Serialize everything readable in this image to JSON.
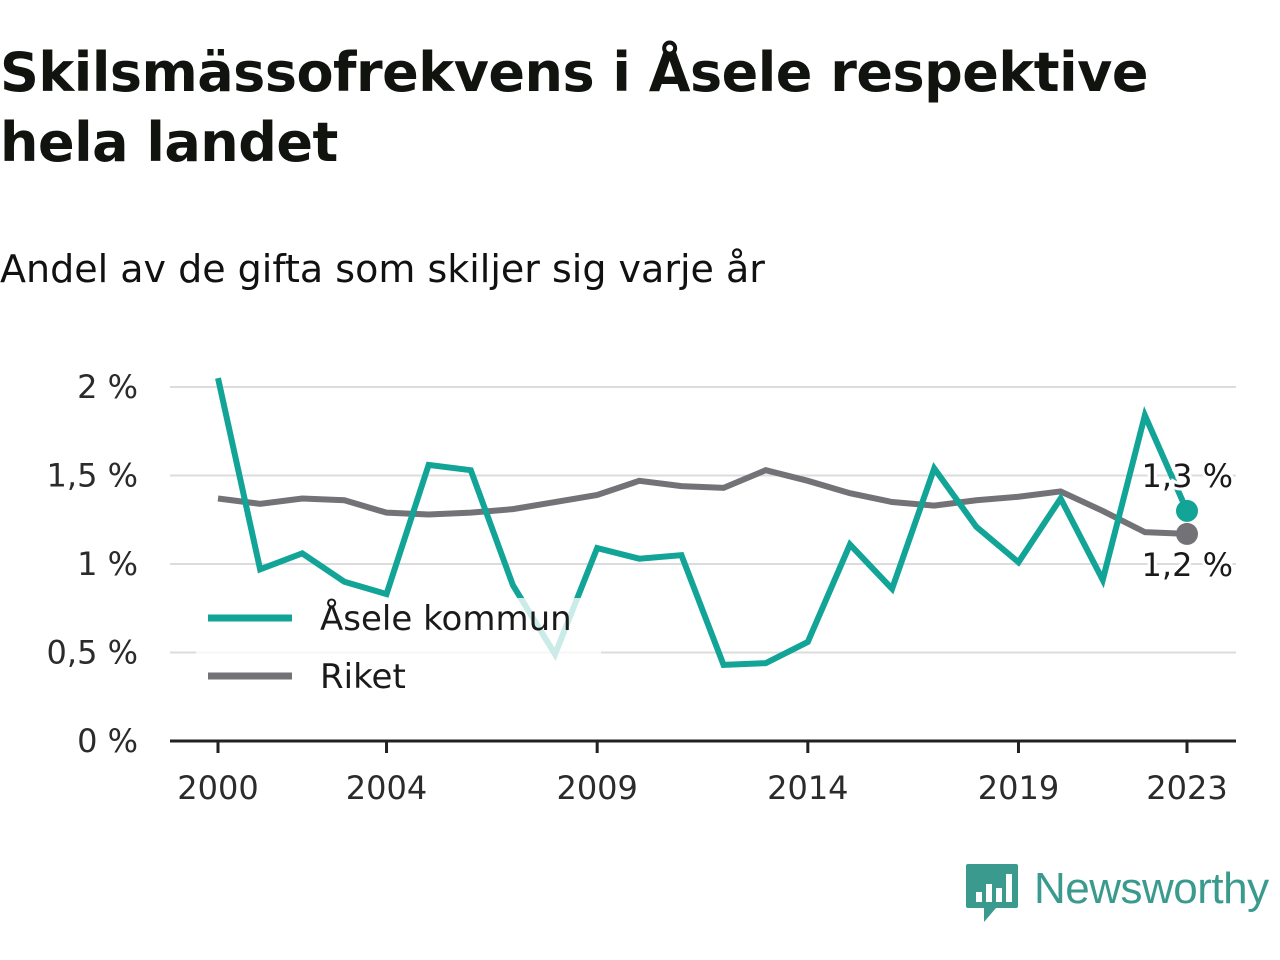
{
  "chart_data": {
    "type": "line",
    "title": "Skilsmässofrekvens i Åsele respektive hela landet",
    "subtitle": "Andel av de gifta som skiljer sig varje år",
    "x": [
      2000,
      2001,
      2002,
      2003,
      2004,
      2005,
      2006,
      2007,
      2008,
      2009,
      2010,
      2011,
      2012,
      2013,
      2014,
      2015,
      2016,
      2017,
      2018,
      2019,
      2020,
      2021,
      2022,
      2023
    ],
    "x_tick_labels": [
      "2000",
      "2004",
      "2009",
      "2014",
      "2019",
      "2023"
    ],
    "x_tick_values": [
      2000,
      2004,
      2009,
      2014,
      2019,
      2023
    ],
    "y_tick_labels": [
      "0 %",
      "0,5 %",
      "1 %",
      "1,5 %",
      "2 %"
    ],
    "y_tick_values": [
      0,
      0.5,
      1,
      1.5,
      2
    ],
    "ylim": [
      0,
      2
    ],
    "grid": "horizontal",
    "legend_position": "lower-left",
    "series": [
      {
        "name": "Åsele kommun",
        "color": "#12a497",
        "values": [
          2.05,
          0.97,
          1.06,
          0.9,
          0.83,
          1.56,
          1.53,
          0.88,
          0.49,
          1.09,
          1.03,
          1.05,
          0.43,
          0.44,
          0.56,
          1.11,
          0.86,
          1.54,
          1.21,
          1.01,
          1.37,
          0.91,
          1.84,
          1.3
        ],
        "end_label": "1,3 %"
      },
      {
        "name": "Riket",
        "color": "#737277",
        "values": [
          1.37,
          1.34,
          1.37,
          1.36,
          1.29,
          1.28,
          1.29,
          1.31,
          1.35,
          1.39,
          1.47,
          1.44,
          1.43,
          1.53,
          1.47,
          1.4,
          1.35,
          1.33,
          1.36,
          1.38,
          1.41,
          1.3,
          1.18,
          1.17
        ],
        "end_label": "1,2 %"
      }
    ]
  },
  "brand": {
    "name": "Newsworthy",
    "logo_icon": "bar-chart-speech-bubble-icon",
    "color": "#3a9a8e"
  }
}
